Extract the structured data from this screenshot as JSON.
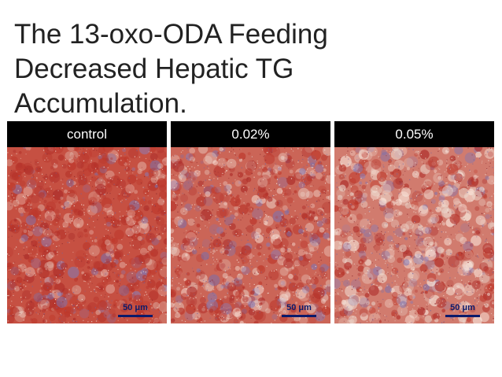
{
  "slide": {
    "title_lines": [
      "The 13-oxo-ODA Feeding",
      "Decreased Hepatic TG",
      "Accumulation."
    ]
  },
  "panels": [
    {
      "label": "control",
      "scale_label": "50 μm",
      "stain_intensity": 1.0
    },
    {
      "label": "0.02%",
      "scale_label": "50 μm",
      "stain_intensity": 0.72
    },
    {
      "label": "0.05%",
      "scale_label": "50 μm",
      "stain_intensity": 0.42
    }
  ],
  "colors": {
    "header_background": "#000000",
    "header_text": "#ffffff",
    "title_text": "#222222",
    "stain_red": "#c0392b",
    "tissue_pale": "#e6cfc4",
    "nuclei_violet": "#8d7fb8",
    "scale_bar": "#0b1a6b"
  }
}
